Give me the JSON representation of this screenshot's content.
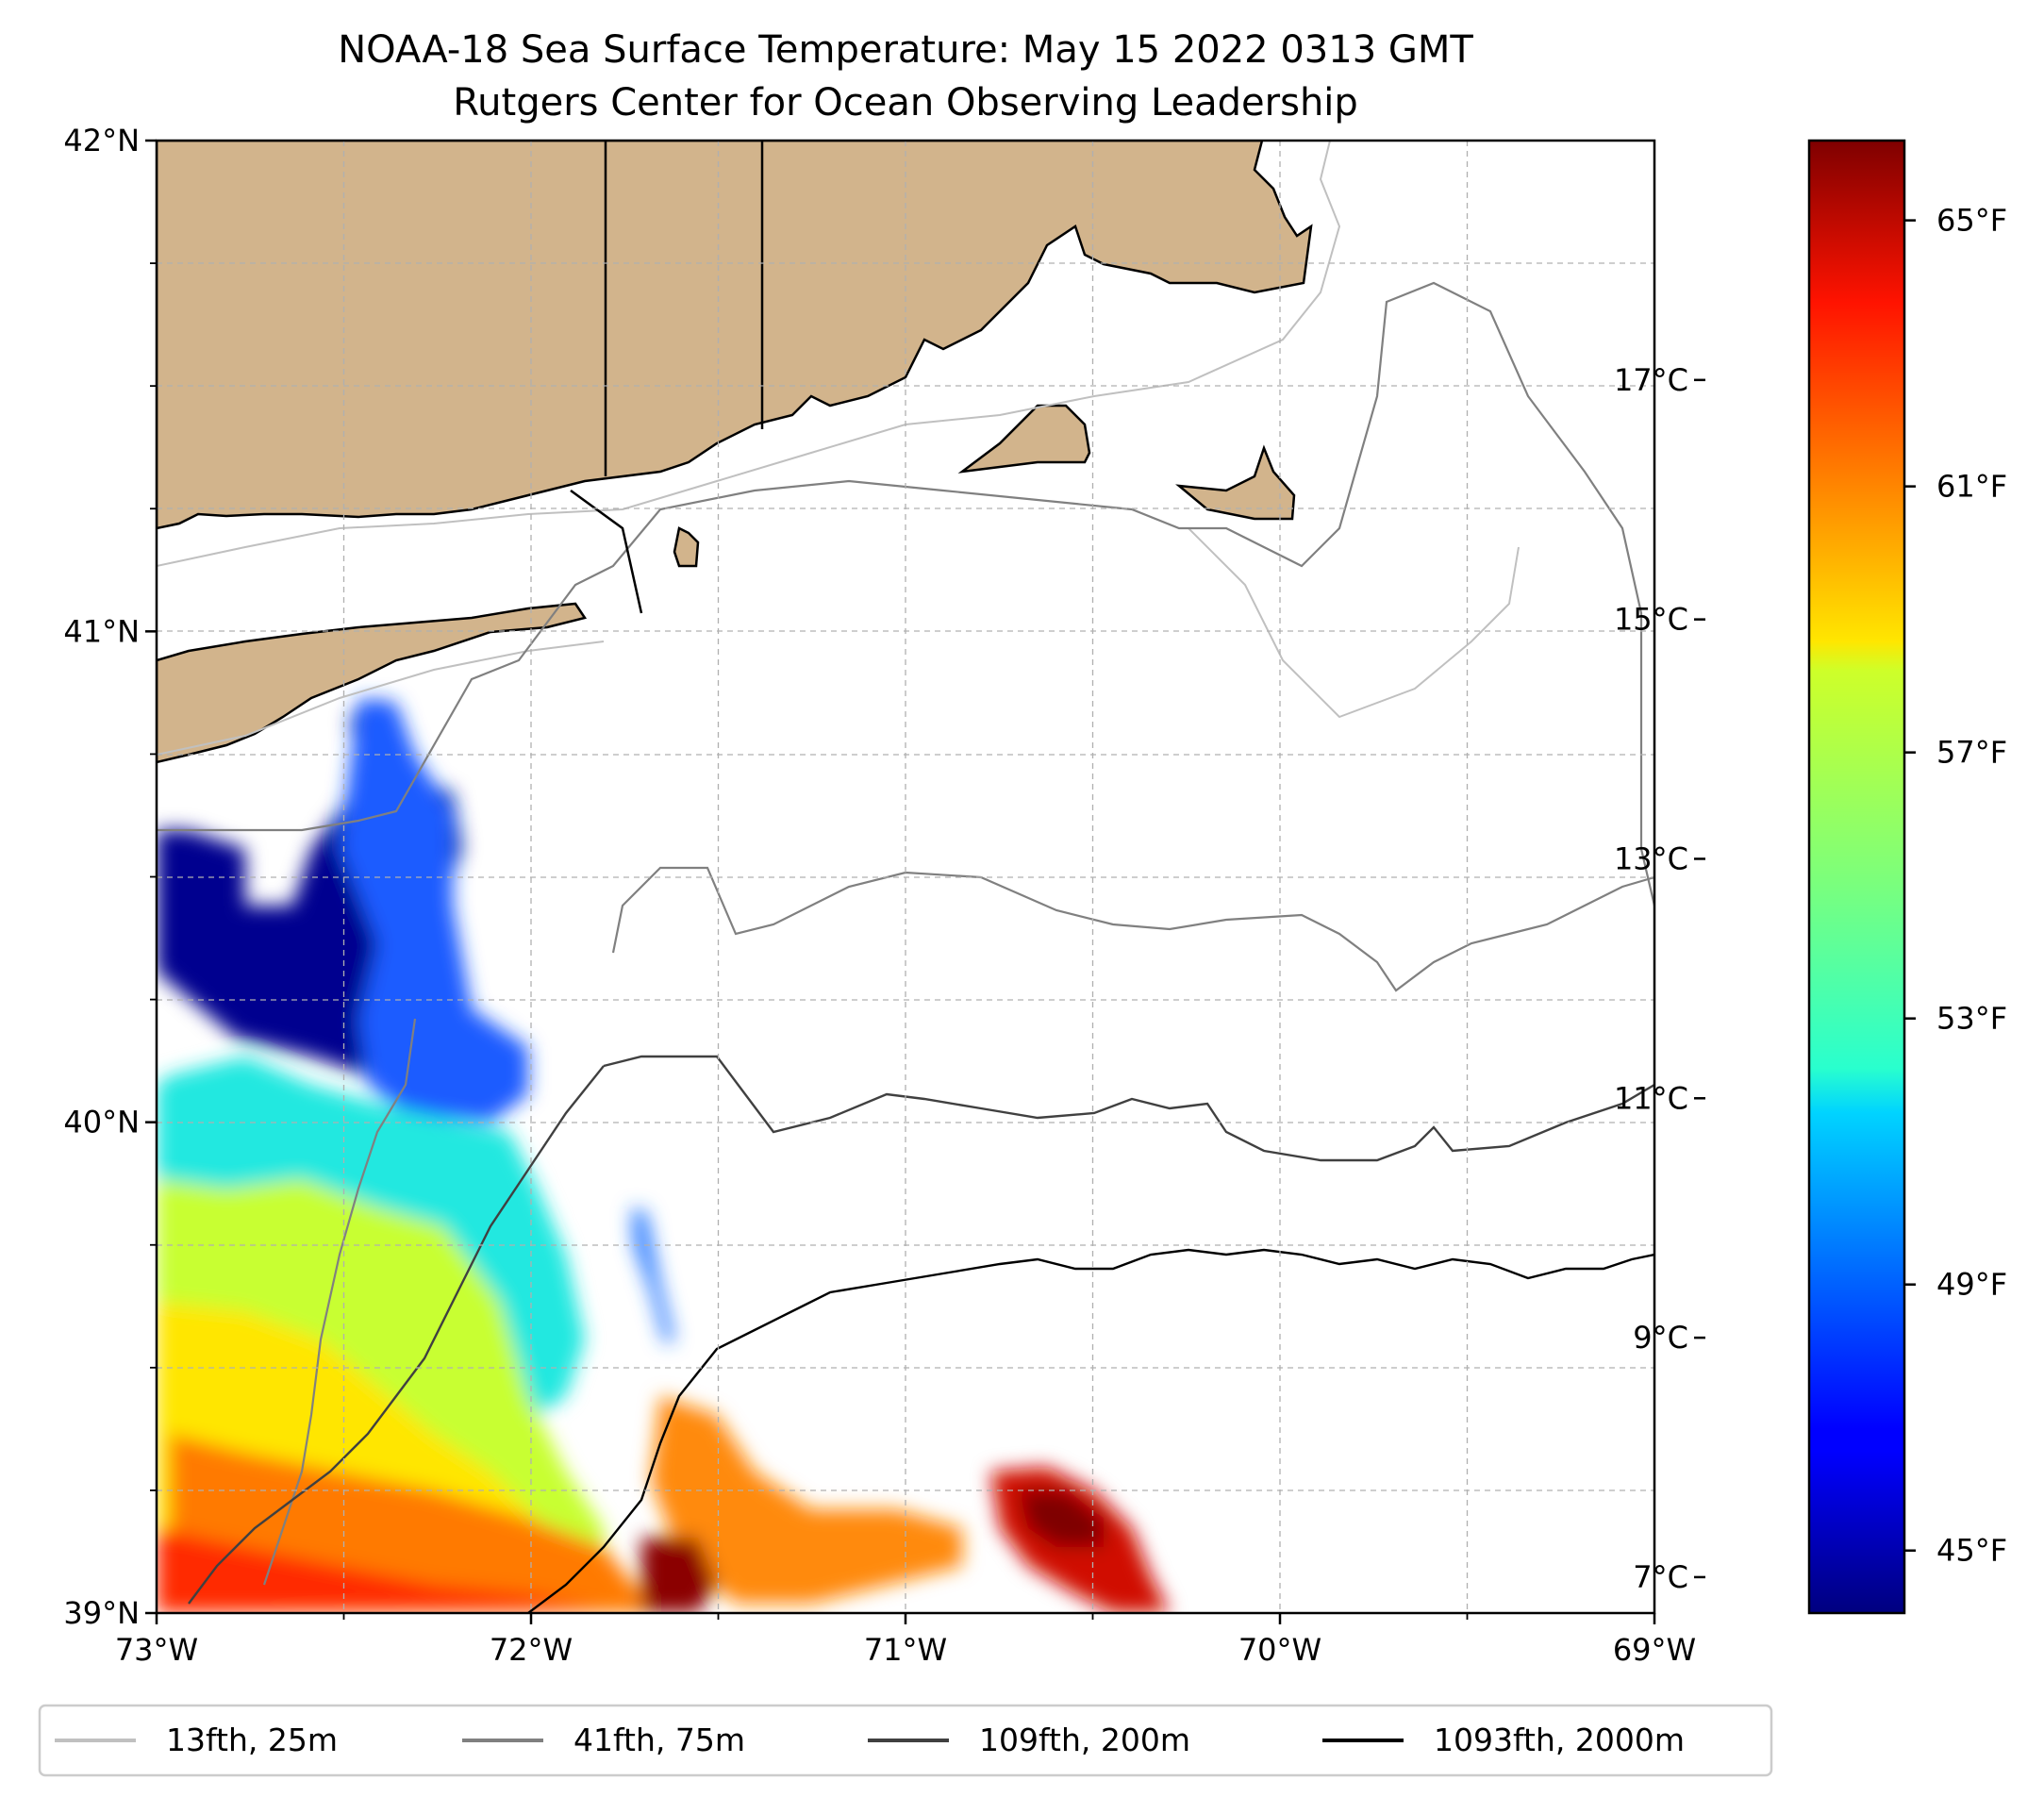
{
  "title": {
    "line1": "NOAA-18 Sea Surface Temperature: May 15 2022 0313 GMT",
    "line2": "Rutgers Center for Ocean Observing Leadership"
  },
  "map": {
    "lon_range": [
      -73,
      -69
    ],
    "lat_range": [
      39,
      42
    ],
    "x_ticks": [
      {
        "lon": -73,
        "label": "73°W"
      },
      {
        "lon": -72,
        "label": "72°W"
      },
      {
        "lon": -71,
        "label": "71°W"
      },
      {
        "lon": -70,
        "label": "70°W"
      },
      {
        "lon": -69,
        "label": "69°W"
      }
    ],
    "y_ticks": [
      {
        "lat": 42,
        "label": "42°N"
      },
      {
        "lat": 41,
        "label": "41°N"
      },
      {
        "lat": 40,
        "label": "40°N"
      },
      {
        "lat": 39,
        "label": "39°N"
      }
    ],
    "grid": "dashed",
    "land_color": "#d2b48c",
    "coastline_color": "#000000"
  },
  "colorbar": {
    "colormap": "jet",
    "celsius_ticks": [
      {
        "value": 7,
        "label": "7°C"
      },
      {
        "value": 9,
        "label": "9°C"
      },
      {
        "value": 11,
        "label": "11°C"
      },
      {
        "value": 13,
        "label": "13°C"
      },
      {
        "value": 15,
        "label": "15°C"
      },
      {
        "value": 17,
        "label": "17°C"
      }
    ],
    "fahrenheit_ticks": [
      {
        "value": 45,
        "label": "45°F"
      },
      {
        "value": 49,
        "label": "49°F"
      },
      {
        "value": 53,
        "label": "53°F"
      },
      {
        "value": 57,
        "label": "57°F"
      },
      {
        "value": 61,
        "label": "61°F"
      },
      {
        "value": 65,
        "label": "65°F"
      }
    ]
  },
  "legend": {
    "placement": "bottom",
    "entries": [
      {
        "label": "13fth, 25m",
        "color": "#c0c0c0"
      },
      {
        "label": "41fth, 75m",
        "color": "#808080"
      },
      {
        "label": "109fth, 200m",
        "color": "#404040"
      },
      {
        "label": "1093fth, 2000m",
        "color": "#000000"
      }
    ]
  }
}
